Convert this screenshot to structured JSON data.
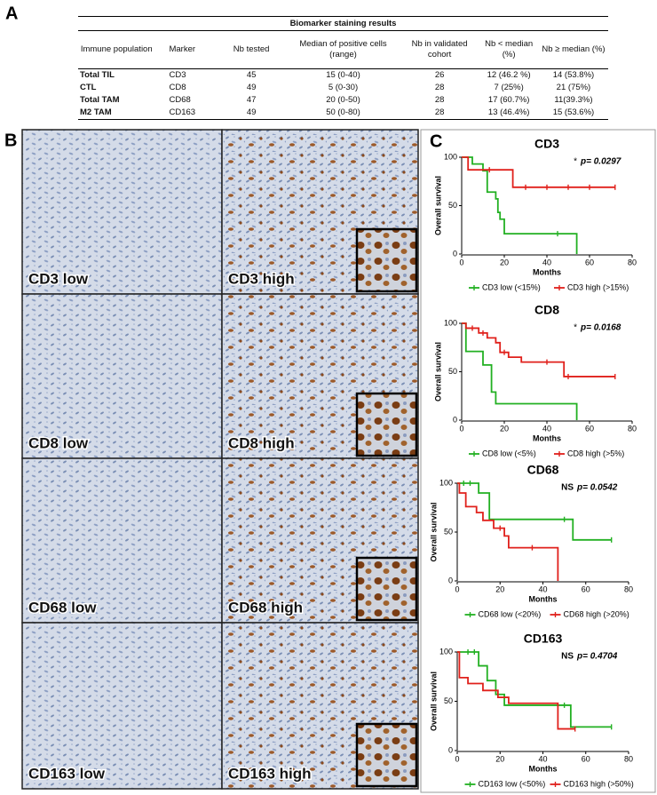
{
  "panels": {
    "a": "A",
    "b": "B",
    "c": "C"
  },
  "table": {
    "title": "Biomarker staining results",
    "header": [
      "Immune population",
      "Marker",
      "Nb tested",
      "Median of positive cells (range)",
      "Nb in validated cohort",
      "Nb < median (%)",
      "Nb ≥ median (%)"
    ],
    "rows": [
      [
        "Total TIL",
        "CD3",
        "45",
        "15 (0-40)",
        "26",
        "12 (46.2 %)",
        "14 (53.8%)"
      ],
      [
        "CTL",
        "CD8",
        "49",
        "5 (0-30)",
        "28",
        "7 (25%)",
        "21 (75%)"
      ],
      [
        "Total TAM",
        "CD68",
        "47",
        "20 (0-50)",
        "28",
        "17 (60.7%)",
        "11(39.3%)"
      ],
      [
        "M2 TAM",
        "CD163",
        "49",
        "50 (0-80)",
        "28",
        "13 (46.4%)",
        "15 (53.6%)"
      ]
    ]
  },
  "images": [
    {
      "label": "CD3 low"
    },
    {
      "label": "CD3 high"
    },
    {
      "label": "CD8 low"
    },
    {
      "label": "CD8 high"
    },
    {
      "label": "CD68 low"
    },
    {
      "label": "CD68 high"
    },
    {
      "label": "CD163 low"
    },
    {
      "label": "CD163 high"
    }
  ],
  "chart_data": [
    {
      "type": "step",
      "title": "CD3",
      "significance": "*",
      "p_value": "p= 0.0297",
      "xlabel": "Months",
      "ylabel": "Overall survival",
      "xlim": [
        0,
        80
      ],
      "xticks": [
        0,
        20,
        40,
        60,
        80
      ],
      "ylim": [
        0,
        100
      ],
      "yticks": [
        0,
        50,
        100
      ],
      "series": [
        {
          "name": "CD3 low (<15%)",
          "color": "#22b022",
          "x": [
            0,
            5,
            10,
            12,
            16,
            17,
            18,
            20,
            54
          ],
          "values": [
            100,
            93,
            86,
            64,
            57,
            43,
            36,
            21,
            0
          ],
          "censored": [
            45
          ]
        },
        {
          "name": "CD3 high (>15%)",
          "color": "#e0201b",
          "x": [
            0,
            3,
            24
          ],
          "values": [
            100,
            87,
            69
          ],
          "censored": [
            13,
            30,
            40,
            50,
            60,
            72
          ]
        }
      ]
    },
    {
      "type": "step",
      "title": "CD8",
      "significance": "*",
      "p_value": "p= 0.0168",
      "xlabel": "Months",
      "ylabel": "Overall survival",
      "xlim": [
        0,
        80
      ],
      "xticks": [
        0,
        20,
        40,
        60,
        80
      ],
      "ylim": [
        0,
        100
      ],
      "yticks": [
        0,
        50,
        100
      ],
      "series": [
        {
          "name": "CD8 low (<5%)",
          "color": "#22b022",
          "x": [
            0,
            2,
            10,
            14,
            16,
            54
          ],
          "values": [
            100,
            71,
            57,
            29,
            17,
            0
          ],
          "censored": []
        },
        {
          "name": "CD8 high (>5%)",
          "color": "#e0201b",
          "x": [
            0,
            2,
            8,
            12,
            16,
            18,
            22,
            28,
            48
          ],
          "values": [
            100,
            95,
            90,
            85,
            80,
            70,
            65,
            60,
            45
          ],
          "censored": [
            5,
            10,
            20,
            40,
            50,
            72
          ]
        }
      ]
    },
    {
      "type": "step",
      "title": "CD68",
      "significance": "NS",
      "p_value": "p= 0.0542",
      "xlabel": "Months",
      "ylabel": "Overall survival",
      "xlim": [
        0,
        80
      ],
      "xticks": [
        0,
        20,
        40,
        60,
        80
      ],
      "ylim": [
        0,
        100
      ],
      "yticks": [
        0,
        50,
        100
      ],
      "series": [
        {
          "name": "CD68 low (<20%)",
          "color": "#22b022",
          "x": [
            0,
            10,
            15,
            54
          ],
          "values": [
            100,
            90,
            63,
            42
          ],
          "censored": [
            3,
            6,
            50,
            72
          ]
        },
        {
          "name": "CD68 high (>20%)",
          "color": "#e0201b",
          "x": [
            0,
            1,
            4,
            9,
            12,
            17,
            22,
            24,
            47
          ],
          "values": [
            100,
            90,
            76,
            70,
            62,
            54,
            46,
            34,
            0
          ],
          "censored": [
            20,
            35
          ]
        }
      ]
    },
    {
      "type": "step",
      "title": "CD163",
      "significance": "NS",
      "p_value": "p= 0.4704",
      "xlabel": "Months",
      "ylabel": "Overall survival",
      "xlim": [
        0,
        80
      ],
      "xticks": [
        0,
        20,
        40,
        60,
        80
      ],
      "ylim": [
        0,
        100
      ],
      "yticks": [
        0,
        50,
        100
      ],
      "series": [
        {
          "name": "CD163 low (<50%)",
          "color": "#22b022",
          "x": [
            0,
            10,
            14,
            18,
            22,
            53
          ],
          "values": [
            100,
            86,
            71,
            57,
            46,
            24
          ],
          "censored": [
            5,
            8,
            50,
            72
          ]
        },
        {
          "name": "CD163 high (>50%)",
          "color": "#e0201b",
          "x": [
            0,
            1,
            5,
            12,
            19,
            24,
            47
          ],
          "values": [
            100,
            74,
            68,
            61,
            54,
            48,
            22
          ],
          "censored": [
            55
          ]
        }
      ]
    }
  ]
}
